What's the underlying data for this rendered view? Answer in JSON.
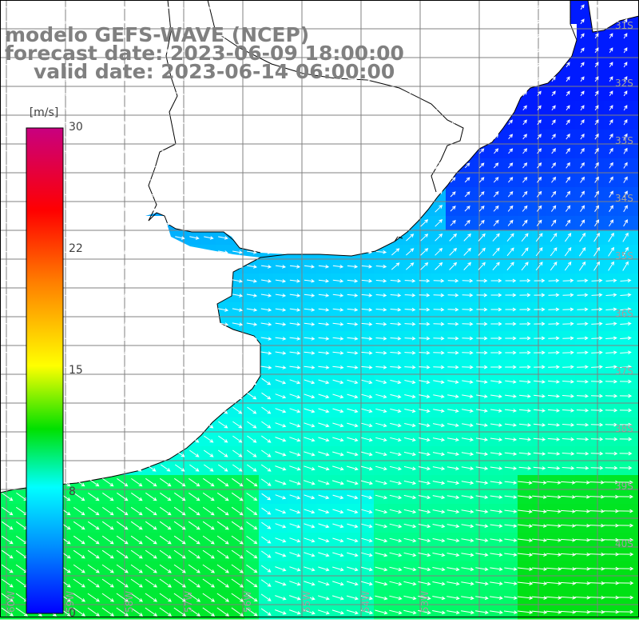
{
  "title": {
    "model": "modelo GEFS-WAVE (NCEP)",
    "forecast": "forecast date: 2023-06-09 18:00:00",
    "valid": "valid date: 2023-06-14 06:00:00"
  },
  "colorbar": {
    "unit": "[m/s]",
    "ticks": [
      "30",
      "22",
      "15",
      "8",
      "0"
    ],
    "gradient": [
      "#c80080",
      "#ff0000",
      "#ff8000",
      "#ffff00",
      "#00e000",
      "#00ffff",
      "#0000ff"
    ]
  },
  "lat_labels": [
    "31S",
    "32S",
    "33S",
    "34S",
    "35S",
    "36S",
    "37S",
    "38S",
    "39S",
    "40S"
  ],
  "lon_labels": [
    "60W",
    "59W",
    "58W",
    "57W",
    "56W",
    "55W",
    "54W",
    "53W"
  ],
  "colors": {
    "land": "#ffffff",
    "coast": "#000000",
    "grid": "#808080",
    "arrow": "#ffffff"
  }
}
